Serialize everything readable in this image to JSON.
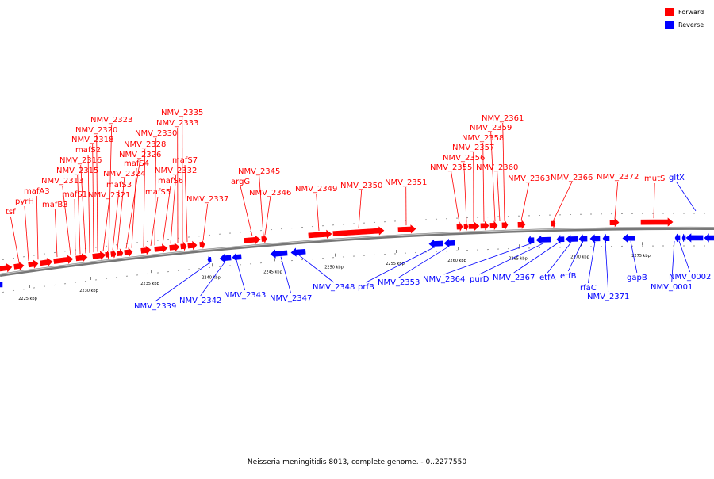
{
  "legend": {
    "forward_label": "Forward",
    "reverse_label": "Reverse",
    "forward_color": "#ff0000",
    "reverse_color": "#0000ff"
  },
  "caption": "Neisseria meningitidis 8013, complete genome. - 0..2277550",
  "chart_data": {
    "type": "genome-map",
    "axis_unit": "kbp",
    "axis_ticks": [
      "2225 kbp",
      "2230 kbp",
      "2235 kbp",
      "2240 kbp",
      "2245 kbp",
      "2250 kbp",
      "2255 kbp",
      "2260 kbp",
      "2265 kbp",
      "2270 kbp",
      "2275 kbp"
    ],
    "forward_genes": [
      "tsf",
      "pyrH",
      "mafA3",
      "mafB3",
      "NMV_2313",
      "mafS1",
      "NMV_2315",
      "NMV_2316",
      "mafS2",
      "NMV_2318",
      "NMV_2320",
      "NMV_2321",
      "NMV_2323",
      "mafS3",
      "NMV_2324",
      "NMV_2326",
      "mafS4",
      "NMV_2328",
      "mafS5",
      "NMV_2330",
      "mafS6",
      "NMV_2332",
      "NMV_2333",
      "NMV_2335",
      "mafS7",
      "NMV_2337",
      "argG",
      "NMV_2345",
      "NMV_2346",
      "NMV_2349",
      "NMV_2350",
      "NMV_2351",
      "NMV_2355",
      "NMV_2356",
      "NMV_2357",
      "NMV_2358",
      "NMV_2359",
      "NMV_2360",
      "NMV_2361",
      "NMV_2363",
      "NMV_2366",
      "NMV_2372",
      "mutS"
    ],
    "reverse_genes": [
      "NMV_2339",
      "NMV_2342",
      "NMV_2343",
      "NMV_2347",
      "NMV_2348",
      "prfB",
      "NMV_2353",
      "NMV_2364",
      "purD",
      "NMV_2367",
      "etfA",
      "etfB",
      "rfaC",
      "NMV_2371",
      "gapB",
      "NMV_0002",
      "NMV_0001",
      "gltX"
    ]
  }
}
